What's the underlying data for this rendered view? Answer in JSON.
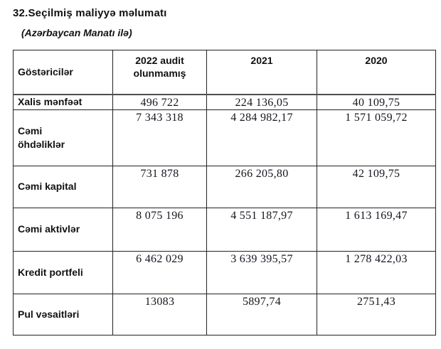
{
  "document": {
    "section_title": "32.Seçilmiş maliyyə məlumatı",
    "currency_note": "(Azərbaycan Manatı ilə)"
  },
  "table": {
    "columns": [
      "Göstəricilər",
      "2022 audit\nolunmamış",
      "2021",
      "2020"
    ],
    "rows": [
      {
        "label": "Xalis mənfəət",
        "values": [
          "496 722",
          "224 136,05",
          "40 109,75"
        ]
      },
      {
        "label": "Cəmi\nöhdəliklər",
        "values": [
          "7 343 318",
          "4 284 982,17",
          "1 571 059,72"
        ]
      },
      {
        "label": "Cəmi kapital",
        "values": [
          "731 878",
          "266 205,80",
          "42 109,75"
        ]
      },
      {
        "label": "Cəmi aktivlər",
        "values": [
          "8 075 196",
          "4 551 187,97",
          "1 613 169,47"
        ]
      },
      {
        "label": "Kredit portfeli",
        "values": [
          "6 462 029",
          "3 639 395,57",
          "1 278 422,03"
        ]
      },
      {
        "label": "Pul vəsaitləri",
        "values": [
          "13083",
          "5897,74",
          "2751,43"
        ]
      }
    ]
  },
  "colors": {
    "text": "#000000",
    "border": "#222222",
    "header_rule": "#4d4d4d",
    "background": "#ffffff"
  }
}
